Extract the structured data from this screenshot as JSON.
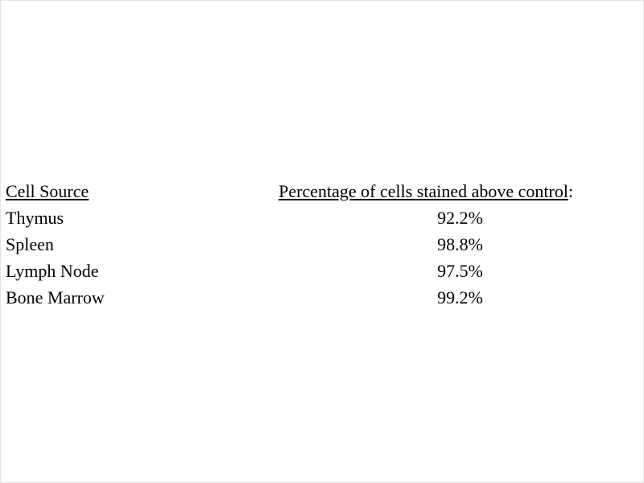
{
  "page": {
    "background": "#ffffff",
    "text_color": "#000000"
  },
  "table": {
    "headers": {
      "cell_source": "Cell Source",
      "percentage": "Percentage of cells stained above control",
      "percentage_colon": ":"
    },
    "rows": [
      {
        "source": "Thymus",
        "value": "92.2%"
      },
      {
        "source": "Spleen",
        "value": "98.8%"
      },
      {
        "source": "Lymph Node",
        "value": "97.5%"
      },
      {
        "source": "Bone Marrow",
        "value": "99.2%"
      }
    ]
  }
}
